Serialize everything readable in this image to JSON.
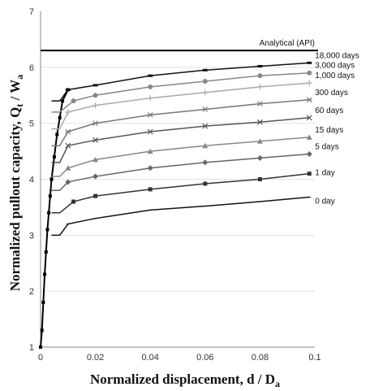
{
  "chart_data": {
    "type": "line",
    "title": "",
    "xlabel": "Normalized displacement, d / D",
    "xlabel_sub": "a",
    "ylabel": "Normalized pullout capacity, Q",
    "ylabel_sub1": "t",
    "ylabel_mid": " / W",
    "ylabel_sub2": "a",
    "xlim": [
      0,
      0.1
    ],
    "ylim": [
      1,
      7
    ],
    "x_ticks": [
      "0",
      "0.02",
      "0.04",
      "0.06",
      "0.08",
      "0.1"
    ],
    "y_ticks": [
      "1",
      "2",
      "3",
      "4",
      "5",
      "6",
      "7"
    ],
    "grid": "horizontal",
    "legend": "series labels at right end of each curve",
    "annotations": [
      {
        "text": "Analytical (API)",
        "y": 6.3
      }
    ],
    "series": [
      {
        "name": "0 day",
        "color": "#111111",
        "marker": "tick",
        "plateau": 3.0,
        "points": [
          [
            0.01,
            3.2
          ],
          [
            0.02,
            3.3
          ],
          [
            0.04,
            3.45
          ],
          [
            0.06,
            3.52
          ],
          [
            0.08,
            3.6
          ],
          [
            0.098,
            3.68
          ]
        ]
      },
      {
        "name": "1 day",
        "color": "#333333",
        "marker": "square",
        "plateau": 3.4,
        "points": [
          [
            0.012,
            3.6
          ],
          [
            0.02,
            3.7
          ],
          [
            0.04,
            3.82
          ],
          [
            0.06,
            3.92
          ],
          [
            0.08,
            4.0
          ],
          [
            0.098,
            4.1
          ]
        ]
      },
      {
        "name": "5 days",
        "color": "#666666",
        "marker": "diamond",
        "plateau": 3.8,
        "points": [
          [
            0.01,
            3.95
          ],
          [
            0.02,
            4.05
          ],
          [
            0.04,
            4.2
          ],
          [
            0.06,
            4.3
          ],
          [
            0.08,
            4.38
          ],
          [
            0.098,
            4.45
          ]
        ]
      },
      {
        "name": "15 days",
        "color": "#888888",
        "marker": "triangle",
        "plateau": 4.05,
        "points": [
          [
            0.01,
            4.2
          ],
          [
            0.02,
            4.35
          ],
          [
            0.04,
            4.5
          ],
          [
            0.06,
            4.6
          ],
          [
            0.08,
            4.68
          ],
          [
            0.098,
            4.75
          ]
        ]
      },
      {
        "name": "60 days",
        "color": "#555555",
        "marker": "x",
        "plateau": 4.3,
        "points": [
          [
            0.01,
            4.6
          ],
          [
            0.02,
            4.7
          ],
          [
            0.04,
            4.85
          ],
          [
            0.06,
            4.95
          ],
          [
            0.08,
            5.02
          ],
          [
            0.098,
            5.1
          ]
        ]
      },
      {
        "name": "300 days",
        "color": "#777777",
        "marker": "star",
        "plateau": 4.6,
        "points": [
          [
            0.01,
            4.85
          ],
          [
            0.02,
            5.0
          ],
          [
            0.04,
            5.15
          ],
          [
            0.06,
            5.25
          ],
          [
            0.08,
            5.35
          ],
          [
            0.098,
            5.42
          ]
        ]
      },
      {
        "name": "1,000 days",
        "color": "#aaaaaa",
        "marker": "plus",
        "plateau": 4.9,
        "points": [
          [
            0.01,
            5.2
          ],
          [
            0.02,
            5.32
          ],
          [
            0.04,
            5.45
          ],
          [
            0.06,
            5.55
          ],
          [
            0.08,
            5.65
          ],
          [
            0.098,
            5.72
          ]
        ]
      },
      {
        "name": "3,000 days",
        "color": "#888888",
        "marker": "circle",
        "plateau": 5.2,
        "points": [
          [
            0.012,
            5.4
          ],
          [
            0.02,
            5.5
          ],
          [
            0.04,
            5.65
          ],
          [
            0.06,
            5.75
          ],
          [
            0.08,
            5.85
          ],
          [
            0.098,
            5.9
          ]
        ]
      },
      {
        "name": "18,000 days",
        "color": "#111111",
        "marker": "dash",
        "plateau": 5.4,
        "points": [
          [
            0.01,
            5.6
          ],
          [
            0.02,
            5.68
          ],
          [
            0.04,
            5.85
          ],
          [
            0.06,
            5.95
          ],
          [
            0.08,
            6.02
          ],
          [
            0.098,
            6.08
          ]
        ]
      }
    ],
    "initial_branch": [
      [
        0,
        1
      ],
      [
        0.0005,
        1.3
      ],
      [
        0.001,
        1.8
      ],
      [
        0.0015,
        2.3
      ],
      [
        0.002,
        2.7
      ],
      [
        0.0025,
        3.1
      ],
      [
        0.003,
        3.4
      ],
      [
        0.0035,
        3.7
      ],
      [
        0.004,
        4.0
      ],
      [
        0.005,
        4.4
      ],
      [
        0.006,
        4.8
      ],
      [
        0.007,
        5.1
      ],
      [
        0.008,
        5.4
      ],
      [
        0.01,
        5.6
      ]
    ]
  }
}
